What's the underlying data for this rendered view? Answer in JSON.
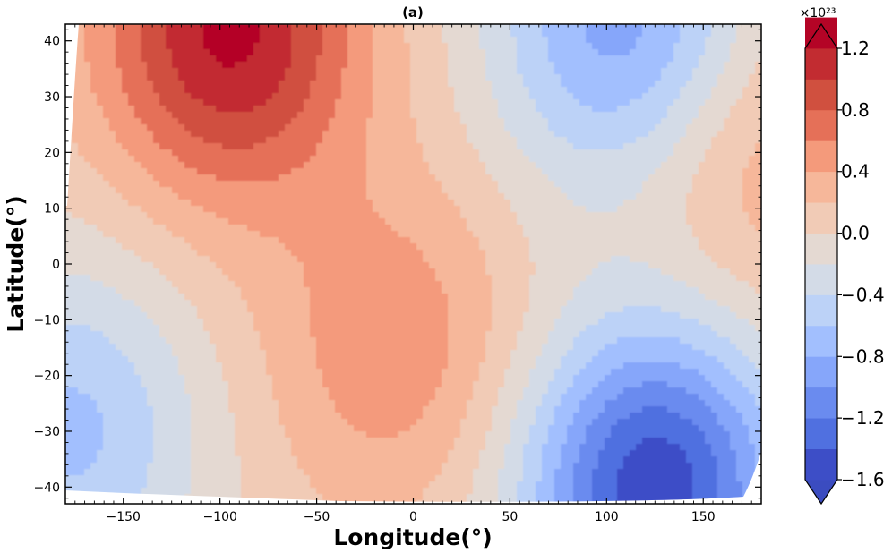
{
  "chart_data": {
    "type": "heatmap",
    "title": "(a)",
    "xlabel": "Longitude(°)",
    "ylabel": "Latitude(°)",
    "xlim": [
      -180,
      180
    ],
    "ylim": [
      -43,
      43
    ],
    "xticks": [
      "−150",
      "−100",
      "−50",
      "0",
      "50",
      "100",
      "150"
    ],
    "xtick_values": [
      -150,
      -100,
      -50,
      0,
      50,
      100,
      150
    ],
    "yticks": [
      "40",
      "30",
      "20",
      "10",
      "0",
      "−10",
      "−20",
      "−30",
      "−40"
    ],
    "ytick_values": [
      40,
      30,
      20,
      10,
      0,
      -10,
      -20,
      -30,
      -40
    ],
    "colormap": "coolwarm",
    "colorbar": {
      "exponent_label": "×10²³",
      "levels": [
        -1.6,
        -1.4,
        -1.2,
        -1.0,
        -0.8,
        -0.6,
        -0.4,
        -0.2,
        0.0,
        0.2,
        0.4,
        0.6,
        0.8,
        1.0,
        1.2
      ],
      "colors": [
        "#3d4ec7",
        "#5070e0",
        "#6a8bef",
        "#86a6fa",
        "#a2bffe",
        "#bcd2f7",
        "#d3dbe7",
        "#e4d9d2",
        "#f1cbb6",
        "#f6b79a",
        "#f49a7b",
        "#e57058",
        "#d0503f",
        "#c22c31",
        "#b40426"
      ],
      "extend_low": "#3b4cc0",
      "extend_high": "#b40426",
      "tick_labels": [
        "1.2",
        "0.8",
        "0.4",
        "0.0",
        "−0.4",
        "−0.8",
        "−1.2",
        "−1.6"
      ],
      "tick_values": [
        1.2,
        0.8,
        0.4,
        0.0,
        -0.4,
        -0.8,
        -1.2,
        -1.6
      ]
    },
    "features": [
      {
        "kind": "max",
        "lon": -95,
        "lat": 42,
        "value": 1.2
      },
      {
        "kind": "max",
        "lon": 170,
        "lat": 20,
        "value": 0.4
      },
      {
        "kind": "max",
        "lon": -10,
        "lat": -15,
        "value": 0.5
      },
      {
        "kind": "min",
        "lon": 110,
        "lat": 42,
        "value": -1.0
      },
      {
        "kind": "min",
        "lon": 125,
        "lat": -40,
        "value": -1.6
      },
      {
        "kind": "min",
        "lon": -178,
        "lat": -30,
        "value": -0.7
      }
    ]
  }
}
